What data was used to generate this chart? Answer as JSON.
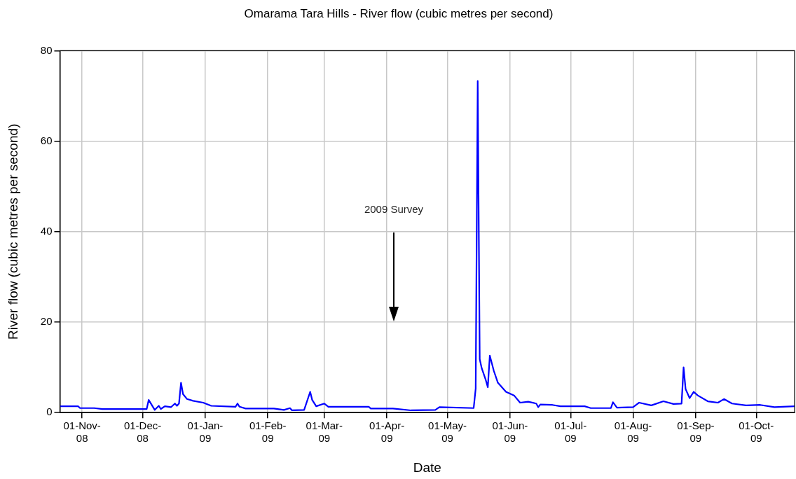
{
  "chart_data": {
    "type": "line",
    "title": "Omarama Tara Hills - River flow (cubic metres per second)",
    "xlabel": "Date",
    "ylabel": "River flow (cubic metres per second)",
    "x": [
      "2008-10-21",
      "2008-10-30",
      "2008-10-31",
      "2008-11-07",
      "2008-11-11",
      "2008-12-03",
      "2008-12-04",
      "2008-12-07",
      "2008-12-09",
      "2008-12-10",
      "2008-12-12",
      "2008-12-15",
      "2008-12-17",
      "2008-12-18",
      "2008-12-19",
      "2008-12-20",
      "2008-12-21",
      "2008-12-23",
      "2008-12-26",
      "2008-12-31",
      "2009-01-04",
      "2009-01-16",
      "2009-01-17",
      "2009-01-18",
      "2009-01-21",
      "2009-02-04",
      "2009-02-09",
      "2009-02-12",
      "2009-02-13",
      "2009-02-19",
      "2009-02-22",
      "2009-02-23",
      "2009-02-25",
      "2009-03-01",
      "2009-03-03",
      "2009-03-23",
      "2009-03-24",
      "2009-04-04",
      "2009-04-13",
      "2009-04-25",
      "2009-04-27",
      "2009-05-14",
      "2009-05-15",
      "2009-05-16",
      "2009-05-17",
      "2009-05-18",
      "2009-05-20",
      "2009-05-21",
      "2009-05-22",
      "2009-05-24",
      "2009-05-26",
      "2009-05-30",
      "2009-06-03",
      "2009-06-06",
      "2009-06-10",
      "2009-06-14",
      "2009-06-15",
      "2009-06-16",
      "2009-06-22",
      "2009-06-26",
      "2009-07-08",
      "2009-07-11",
      "2009-07-21",
      "2009-07-22",
      "2009-07-24",
      "2009-08-01",
      "2009-08-04",
      "2009-08-10",
      "2009-08-16",
      "2009-08-21",
      "2009-08-25",
      "2009-08-26",
      "2009-08-27",
      "2009-08-29",
      "2009-08-31",
      "2009-09-02",
      "2009-09-07",
      "2009-09-12",
      "2009-09-15",
      "2009-09-19",
      "2009-09-26",
      "2009-10-03",
      "2009-10-10",
      "2009-10-20"
    ],
    "series": [
      {
        "color": "#0000ff",
        "values": [
          1.4,
          1.4,
          1.0,
          1.0,
          0.8,
          0.8,
          2.8,
          0.6,
          1.5,
          0.8,
          1.4,
          1.2,
          2.0,
          1.5,
          2.0,
          6.6,
          4.1,
          3.0,
          2.6,
          2.2,
          1.5,
          1.3,
          2.0,
          1.3,
          0.9,
          0.9,
          0.6,
          1.0,
          0.5,
          0.6,
          4.6,
          2.8,
          1.4,
          2.0,
          1.3,
          1.3,
          0.9,
          0.9,
          0.5,
          0.6,
          1.2,
          1.0,
          5.3,
          73.3,
          11.8,
          9.8,
          7.2,
          5.6,
          12.6,
          9.2,
          6.6,
          4.6,
          3.8,
          2.2,
          2.4,
          2.0,
          1.2,
          1.8,
          1.7,
          1.4,
          1.4,
          1.0,
          1.0,
          2.3,
          1.1,
          1.2,
          2.2,
          1.6,
          2.5,
          1.9,
          2.0,
          10.0,
          5.2,
          3.2,
          4.6,
          3.8,
          2.5,
          2.2,
          3.0,
          2.0,
          1.6,
          1.7,
          1.2,
          1.4
        ]
      }
    ],
    "xlim": [
      "2008-10-21",
      "2009-10-20"
    ],
    "xticks": [
      {
        "value": "2008-11-01",
        "label": "01-Nov-08"
      },
      {
        "value": "2008-12-01",
        "label": "01-Dec-08"
      },
      {
        "value": "2009-01-01",
        "label": "01-Jan-09"
      },
      {
        "value": "2009-02-01",
        "label": "01-Feb-09"
      },
      {
        "value": "2009-03-01",
        "label": "01-Mar-09"
      },
      {
        "value": "2009-04-01",
        "label": "01-Apr-09"
      },
      {
        "value": "2009-05-01",
        "label": "01-May-09"
      },
      {
        "value": "2009-06-01",
        "label": "01-Jun-09"
      },
      {
        "value": "2009-07-01",
        "label": "01-Jul-09"
      },
      {
        "value": "2009-08-01",
        "label": "01-Aug-09"
      },
      {
        "value": "2009-09-01",
        "label": "01-Sep-09"
      },
      {
        "value": "2009-10-01",
        "label": "01-Oct-09"
      }
    ],
    "ylim": [
      0,
      80
    ],
    "yticks": [
      0,
      20,
      40,
      60,
      80
    ],
    "annotations": [
      "2009 Survey"
    ],
    "grid": true,
    "legend": false,
    "marker": "none",
    "line_style": "solid"
  }
}
